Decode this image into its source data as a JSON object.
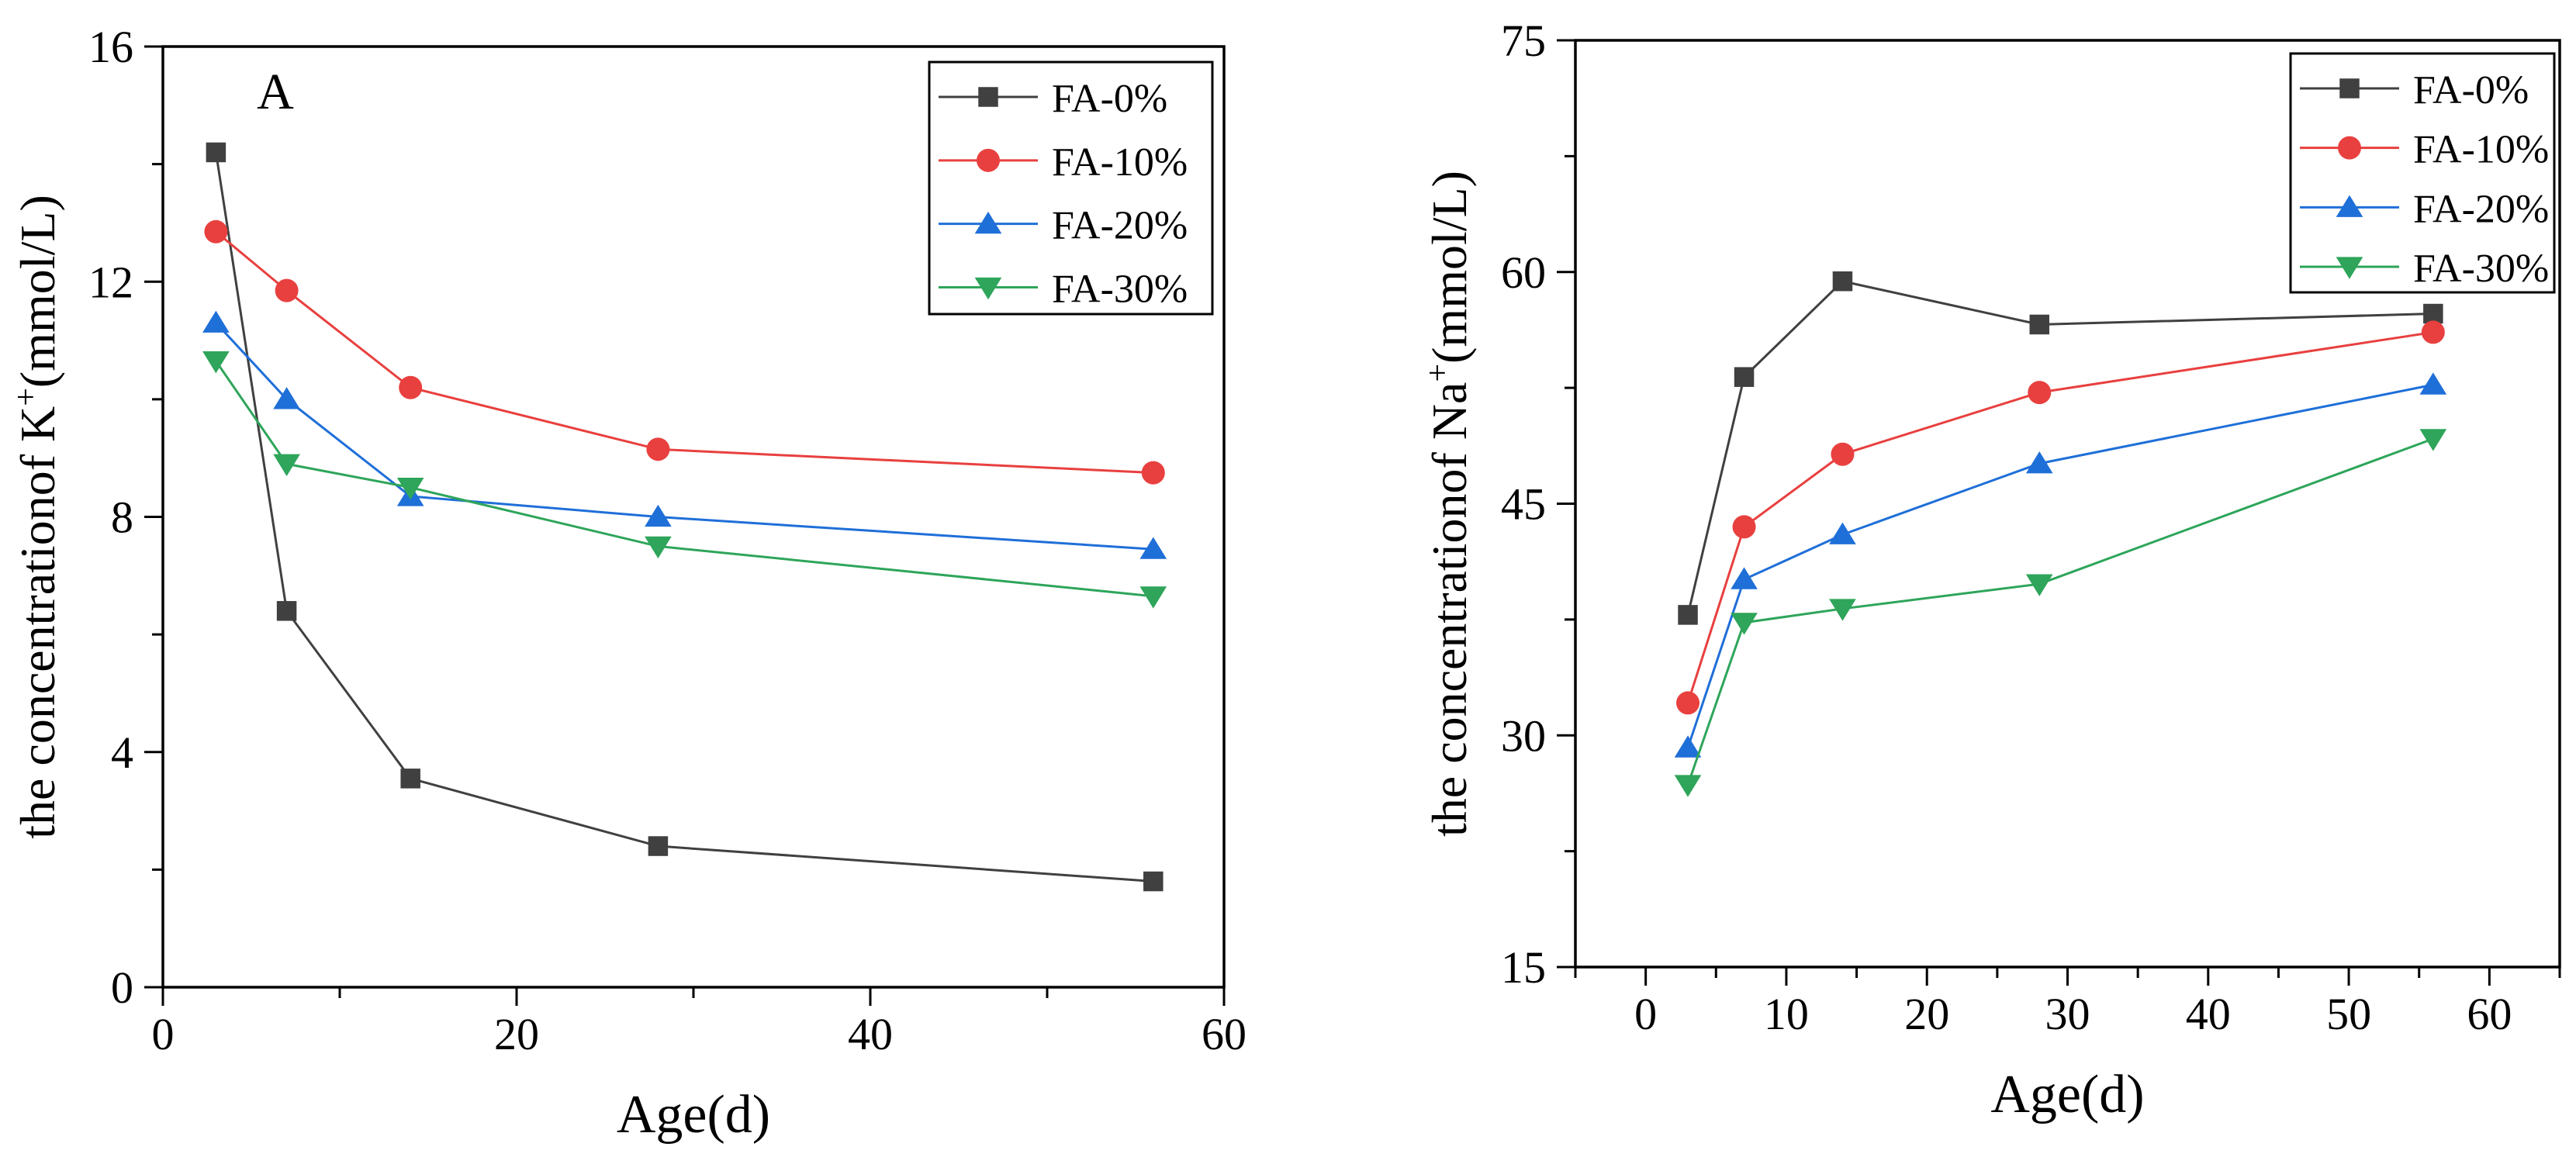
{
  "chart_data": [
    {
      "id": "left",
      "type": "line",
      "panel_label": "A",
      "title": "",
      "xlabel": "Age(d)",
      "ylabel_prefix": "the concentrationof K",
      "ylabel_superscript": "+",
      "ylabel_suffix": "(mmol/L)",
      "xlim": [
        0,
        60
      ],
      "ylim": [
        0,
        16
      ],
      "xticks": [
        0,
        20,
        40,
        60
      ],
      "yticks": [
        0,
        4,
        8,
        12,
        16
      ],
      "xtick_labels": [
        "0",
        "20",
        "40",
        "60"
      ],
      "ytick_labels": [
        "0",
        "4",
        "8",
        "12",
        "16"
      ],
      "x_minor_step": 10,
      "y_minor_step": 2,
      "legend_position": "top-right",
      "grid": false,
      "x": [
        3,
        7,
        14,
        28,
        56
      ],
      "series": [
        {
          "name": "FA-0%",
          "color": "#404040",
          "marker": "square",
          "values": [
            14.2,
            6.4,
            3.55,
            2.4,
            1.8
          ]
        },
        {
          "name": "FA-10%",
          "color": "#e8403f",
          "marker": "circle",
          "values": [
            12.85,
            11.85,
            10.2,
            9.15,
            8.75
          ]
        },
        {
          "name": "FA-20%",
          "color": "#1f6fd8",
          "marker": "triangle-up",
          "values": [
            11.3,
            10.0,
            8.35,
            8.0,
            7.45
          ]
        },
        {
          "name": "FA-30%",
          "color": "#2ea55a",
          "marker": "triangle-down",
          "values": [
            10.65,
            8.9,
            8.5,
            7.5,
            6.65
          ]
        }
      ]
    },
    {
      "id": "right",
      "type": "line",
      "panel_label": "",
      "title": "",
      "xlabel": "Age(d)",
      "ylabel_prefix": "the concentrationof Na",
      "ylabel_superscript": "+",
      "ylabel_suffix": "(mmol/L)",
      "xlim": [
        -5,
        65
      ],
      "ylim": [
        15,
        75
      ],
      "xticks": [
        0,
        10,
        20,
        30,
        40,
        50,
        60
      ],
      "yticks": [
        15,
        30,
        45,
        60,
        75
      ],
      "xtick_labels": [
        "0",
        "10",
        "20",
        "30",
        "40",
        "50",
        "60"
      ],
      "ytick_labels": [
        "15",
        "30",
        "45",
        "60",
        "75"
      ],
      "x_minor_step": 5,
      "y_minor_step": 7.5,
      "legend_position": "top-right",
      "grid": false,
      "x": [
        3,
        7,
        14,
        28,
        56
      ],
      "series": [
        {
          "name": "FA-0%",
          "color": "#404040",
          "marker": "square",
          "values": [
            37.8,
            53.2,
            59.4,
            56.6,
            57.3
          ]
        },
        {
          "name": "FA-10%",
          "color": "#e8403f",
          "marker": "circle",
          "values": [
            32.1,
            43.5,
            48.2,
            52.2,
            56.1
          ]
        },
        {
          "name": "FA-20%",
          "color": "#1f6fd8",
          "marker": "triangle-up",
          "values": [
            29.2,
            40.1,
            43.0,
            47.6,
            52.7
          ]
        },
        {
          "name": "FA-30%",
          "color": "#2ea55a",
          "marker": "triangle-down",
          "values": [
            26.8,
            37.3,
            38.2,
            39.8,
            49.2
          ]
        }
      ]
    }
  ]
}
